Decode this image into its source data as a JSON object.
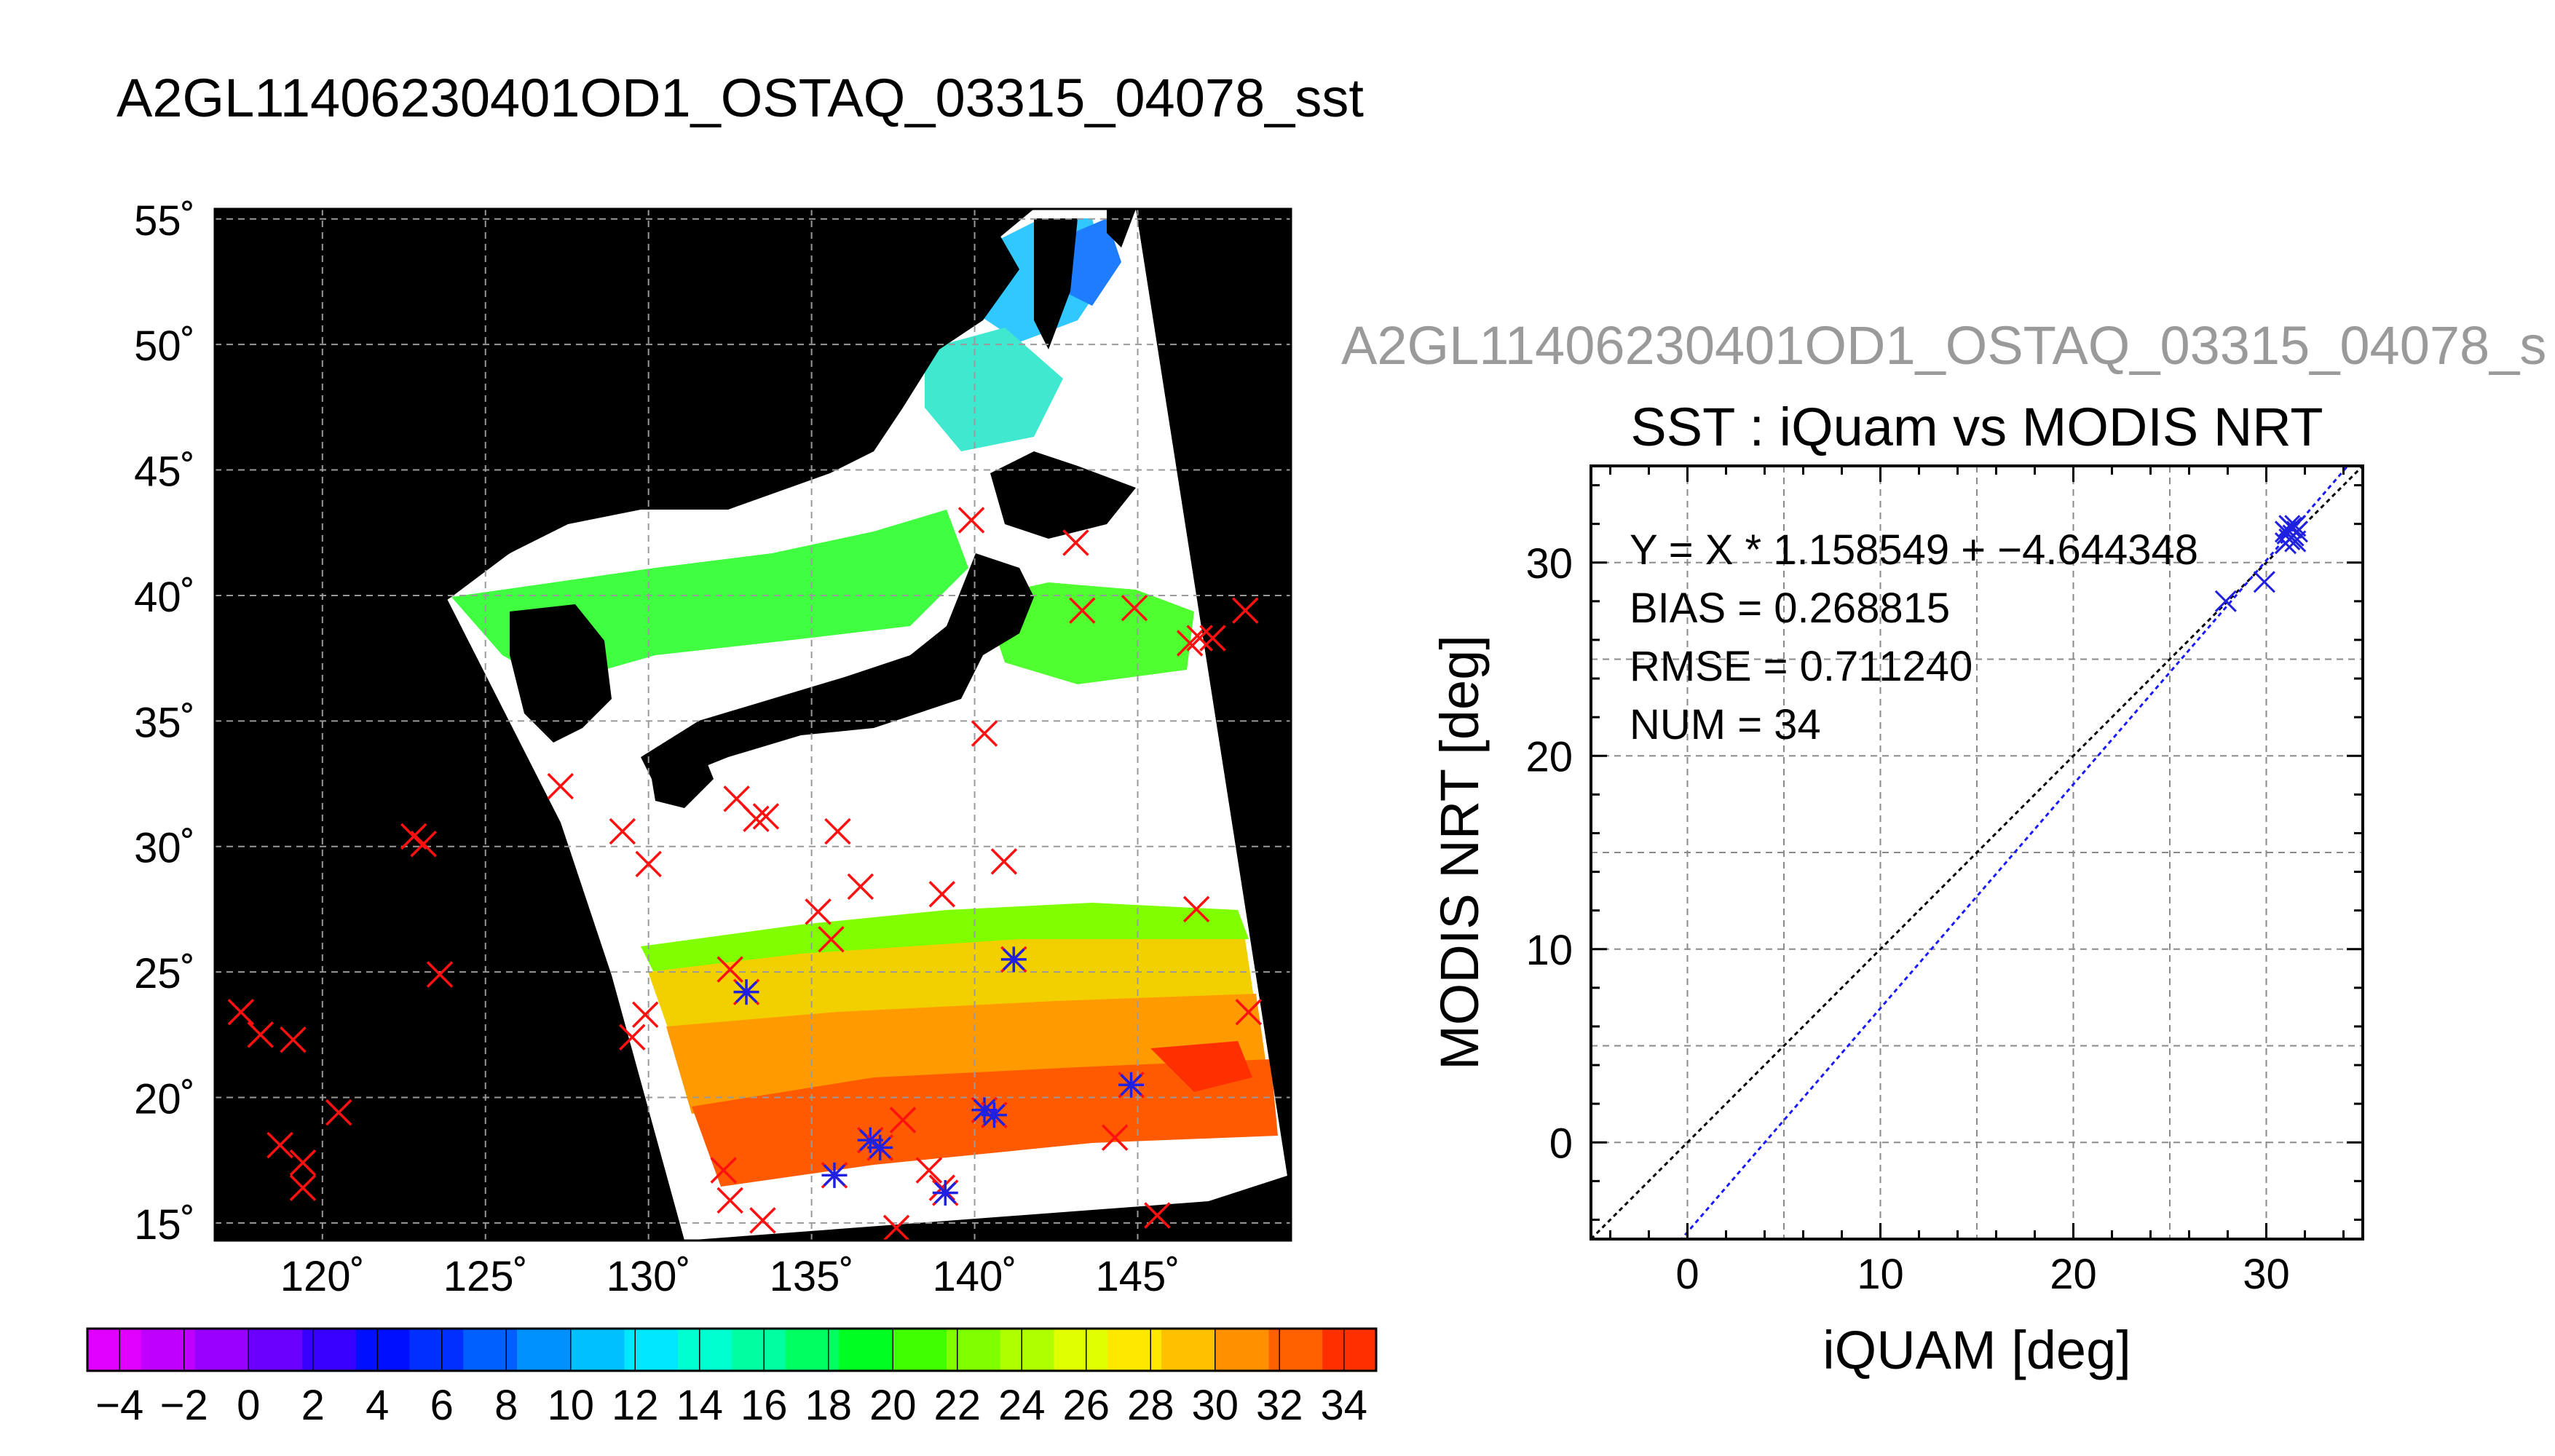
{
  "header": {
    "title": "A2GL11406230401OD1_OSTAQ_03315_04078_sst",
    "scatter_source_title": "A2GL11406230401OD1_OSTAQ_03315_04078_s"
  },
  "map": {
    "lat_labels": [
      "55˚",
      "50˚",
      "45˚",
      "40˚",
      "35˚",
      "30˚",
      "25˚",
      "20˚",
      "15˚"
    ],
    "lon_labels": [
      "120˚",
      "125˚",
      "130˚",
      "135˚",
      "140˚",
      "145˚"
    ],
    "colorbar_labels": [
      "−4",
      "−2",
      "0",
      "2",
      "4",
      "6",
      "8",
      "10",
      "12",
      "14",
      "16",
      "18",
      "20",
      "22",
      "24",
      "26",
      "28",
      "30",
      "32",
      "34"
    ],
    "colorbar_colors": [
      "#e000ff",
      "#c000ff",
      "#9a00ff",
      "#6a00ff",
      "#3a00ff",
      "#0010ff",
      "#0030ff",
      "#0060ff",
      "#0090ff",
      "#00c0ff",
      "#00e8ff",
      "#00ffd0",
      "#00ffa0",
      "#00ff60",
      "#00ff20",
      "#40ff00",
      "#80ff00",
      "#b0ff00",
      "#e0ff00",
      "#ffe800",
      "#ffc000",
      "#ff9000",
      "#ff6000",
      "#ff3000"
    ],
    "colorbar_range": [
      -5,
      35
    ],
    "lon_range": [
      116.7,
      149.7
    ],
    "lat_range": [
      14.3,
      55.4
    ]
  },
  "chart_data": [
    {
      "type": "map",
      "title": "A2GL11406230401OD1_OSTAQ_03315_04078_sst",
      "colorbar": {
        "range": [
          -5,
          35
        ],
        "ticks": [
          -4,
          -2,
          0,
          2,
          4,
          6,
          8,
          10,
          12,
          14,
          16,
          18,
          20,
          22,
          24,
          26,
          28,
          30,
          32,
          34
        ]
      },
      "iquam_points_red_x": [
        {
          "lon": 117.5,
          "lat": 23.4
        },
        {
          "lon": 118.1,
          "lat": 22.5
        },
        {
          "lon": 119.1,
          "lat": 22.3
        },
        {
          "lon": 118.7,
          "lat": 18.1
        },
        {
          "lon": 119.4,
          "lat": 17.4
        },
        {
          "lon": 119.4,
          "lat": 16.4
        },
        {
          "lon": 120.5,
          "lat": 19.4
        },
        {
          "lon": 122.8,
          "lat": 30.4
        },
        {
          "lon": 123.1,
          "lat": 30.1
        },
        {
          "lon": 123.6,
          "lat": 24.9
        },
        {
          "lon": 127.3,
          "lat": 32.4
        },
        {
          "lon": 129.2,
          "lat": 30.6
        },
        {
          "lon": 130.0,
          "lat": 29.3
        },
        {
          "lon": 129.5,
          "lat": 22.4
        },
        {
          "lon": 129.9,
          "lat": 23.3
        },
        {
          "lon": 132.5,
          "lat": 25.1
        },
        {
          "lon": 132.7,
          "lat": 31.9
        },
        {
          "lon": 133.3,
          "lat": 31.1
        },
        {
          "lon": 133.6,
          "lat": 31.2
        },
        {
          "lon": 135.2,
          "lat": 27.4
        },
        {
          "lon": 135.6,
          "lat": 26.3
        },
        {
          "lon": 135.8,
          "lat": 30.6
        },
        {
          "lon": 136.5,
          "lat": 28.4
        },
        {
          "lon": 137.8,
          "lat": 19.1
        },
        {
          "lon": 139.0,
          "lat": 28.1
        },
        {
          "lon": 140.9,
          "lat": 29.4
        },
        {
          "lon": 140.3,
          "lat": 34.5
        },
        {
          "lon": 139.9,
          "lat": 43.0
        },
        {
          "lon": 143.1,
          "lat": 42.1
        },
        {
          "lon": 143.3,
          "lat": 39.4
        },
        {
          "lon": 144.9,
          "lat": 39.5
        },
        {
          "lon": 146.6,
          "lat": 38.1
        },
        {
          "lon": 146.9,
          "lat": 38.3
        },
        {
          "lon": 147.3,
          "lat": 38.3
        },
        {
          "lon": 148.3,
          "lat": 39.4
        },
        {
          "lon": 146.8,
          "lat": 27.5
        },
        {
          "lon": 148.4,
          "lat": 23.4
        },
        {
          "lon": 144.3,
          "lat": 18.4
        },
        {
          "lon": 145.6,
          "lat": 15.3
        },
        {
          "lon": 132.3,
          "lat": 17.1
        },
        {
          "lon": 132.5,
          "lat": 15.9
        },
        {
          "lon": 133.5,
          "lat": 15.1
        },
        {
          "lon": 137.6,
          "lat": 14.8
        },
        {
          "lon": 138.6,
          "lat": 17.1
        },
        {
          "lon": 139.0,
          "lat": 16.4
        }
      ],
      "matched_points_blue_star": [
        {
          "lon": 141.2,
          "lat": 25.5
        },
        {
          "lon": 133.0,
          "lat": 24.2
        },
        {
          "lon": 135.7,
          "lat": 16.9
        },
        {
          "lon": 136.8,
          "lat": 18.3
        },
        {
          "lon": 137.1,
          "lat": 18.0
        },
        {
          "lon": 140.3,
          "lat": 19.5
        },
        {
          "lon": 140.6,
          "lat": 19.3
        },
        {
          "lon": 139.1,
          "lat": 16.2
        },
        {
          "lon": 144.8,
          "lat": 20.5
        }
      ]
    },
    {
      "type": "scatter",
      "title": "SST : iQuam vs MODIS NRT",
      "xlabel": "iQUAM [deg]",
      "ylabel": "MODIS NRT [deg]",
      "xlim": [
        -5,
        35
      ],
      "ylim": [
        -5,
        35
      ],
      "xticks": [
        "0",
        "10",
        "20",
        "30"
      ],
      "yticks": [
        "0",
        "10",
        "20",
        "30"
      ],
      "grid": true,
      "annotations": [
        "Y = X * 1.158549 + −4.644348",
        "BIAS = 0.268815",
        "RMSE = 0.711240",
        "NUM = 34"
      ],
      "fit": {
        "slope": 1.158549,
        "intercept": -4.644348
      },
      "points": [
        {
          "x": 27.9,
          "y": 28.0
        },
        {
          "x": 29.9,
          "y": 29.0
        },
        {
          "x": 31.0,
          "y": 31.0
        },
        {
          "x": 31.1,
          "y": 31.5
        },
        {
          "x": 31.2,
          "y": 31.2
        },
        {
          "x": 31.3,
          "y": 31.8
        },
        {
          "x": 31.4,
          "y": 31.4
        },
        {
          "x": 31.5,
          "y": 31.9
        },
        {
          "x": 31.5,
          "y": 31.1
        },
        {
          "x": 31.2,
          "y": 31.9
        },
        {
          "x": 31.6,
          "y": 31.6
        },
        {
          "x": 31.3,
          "y": 31.3
        },
        {
          "x": 31.0,
          "y": 31.6
        }
      ]
    }
  ]
}
